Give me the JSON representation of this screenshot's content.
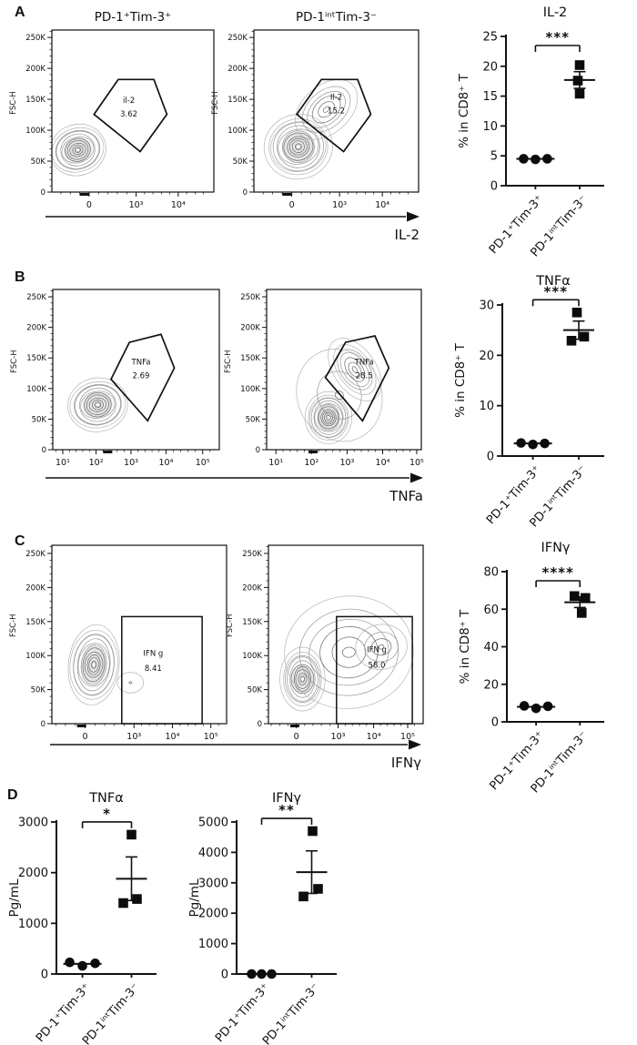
{
  "panels": {
    "a": {
      "label": "A"
    },
    "b": {
      "label": "B"
    },
    "c": {
      "label": "C"
    },
    "d": {
      "label": "D"
    }
  },
  "chart_data": {
    "flow_rows": {
      "a": {
        "type": "contour",
        "axis_label": "IL-2",
        "ylabel": "FSC-H",
        "yticks": [
          "0",
          "50K",
          "100K",
          "150K",
          "200K",
          "250K"
        ],
        "plots": [
          {
            "title": "PD-1⁺Tim-3⁺",
            "xticks": [
              [
                "0",
                0.23
              ],
              [
                "10³",
                0.52
              ],
              [
                "10⁴",
                0.78
              ]
            ],
            "zero_mark": 0.2,
            "gate": {
              "type": "poly",
              "pts": [
                [
                  0.26,
                  0.52
                ],
                [
                  0.41,
                  0.305
                ],
                [
                  0.63,
                  0.305
                ],
                [
                  0.71,
                  0.52
                ],
                [
                  0.545,
                  0.75
                ]
              ],
              "name": "il-2",
              "value": "3.62",
              "lx": 0.475,
              "ly": 0.45
            },
            "pops": [
              {
                "cx": 0.16,
                "cy": 0.74,
                "rx": 0.175,
                "ry": 0.15,
                "rot": -18,
                "n": 11,
                "dark": 1
              }
            ]
          },
          {
            "title": "PD-1ⁱⁿᵗTim-3⁻",
            "xticks": [
              [
                "0",
                0.23
              ],
              [
                "10³",
                0.52
              ],
              [
                "10⁴",
                0.78
              ]
            ],
            "zero_mark": 0.2,
            "gate": {
              "type": "poly",
              "pts": [
                [
                  0.26,
                  0.52
                ],
                [
                  0.41,
                  0.305
                ],
                [
                  0.63,
                  0.305
                ],
                [
                  0.71,
                  0.52
                ],
                [
                  0.545,
                  0.75
                ]
              ],
              "name": "Il-2",
              "value": "15.2",
              "lx": 0.5,
              "ly": 0.43
            },
            "pops": [
              {
                "cx": 0.27,
                "cy": 0.72,
                "rx": 0.2,
                "ry": 0.19,
                "rot": -15,
                "n": 12,
                "dark": 1
              },
              {
                "cx": 0.44,
                "cy": 0.49,
                "rx": 0.21,
                "ry": 0.14,
                "rot": -42,
                "n": 6
              }
            ]
          }
        ]
      },
      "b": {
        "type": "contour",
        "axis_label": "TNFa",
        "ylabel": "FSC-H",
        "yticks": [
          "0",
          "50K",
          "100K",
          "150K",
          "200K",
          "250K"
        ],
        "plots": [
          {
            "xticks": [
              [
                "10¹",
                0.06
              ],
              [
                "10²",
                0.26
              ],
              [
                "10³",
                0.47
              ],
              [
                "10⁴",
                0.68
              ],
              [
                "10⁵",
                0.9
              ]
            ],
            "zero_mark": 0.33,
            "gate": {
              "type": "poly",
              "pts": [
                [
                  0.35,
                  0.56
                ],
                [
                  0.46,
                  0.33
                ],
                [
                  0.65,
                  0.28
                ],
                [
                  0.73,
                  0.49
                ],
                [
                  0.57,
                  0.82
                ]
              ],
              "name": "TNFa",
              "value": "2.69",
              "lx": 0.53,
              "ly": 0.47
            },
            "pops": [
              {
                "cx": 0.27,
                "cy": 0.72,
                "rx": 0.18,
                "ry": 0.16,
                "rot": -10,
                "n": 11,
                "dark": 1
              }
            ]
          },
          {
            "xticks": [
              [
                "10¹",
                0.06
              ],
              [
                "10²",
                0.29
              ],
              [
                "10³",
                0.52
              ],
              [
                "10⁴",
                0.75
              ],
              [
                "10⁵",
                0.97
              ]
            ],
            "zero_mark": 0.3,
            "gate": {
              "type": "poly",
              "pts": [
                [
                  0.38,
                  0.55
                ],
                [
                  0.51,
                  0.33
                ],
                [
                  0.7,
                  0.29
                ],
                [
                  0.79,
                  0.49
                ],
                [
                  0.62,
                  0.82
                ]
              ],
              "name": "TNFa",
              "value": "28.5",
              "lx": 0.63,
              "ly": 0.47
            },
            "pops": [
              {
                "cx": 0.4,
                "cy": 0.8,
                "rx": 0.145,
                "ry": 0.155,
                "rot": 0,
                "n": 12,
                "dark": 1
              },
              {
                "cx": 0.57,
                "cy": 0.5,
                "rx": 0.13,
                "ry": 0.21,
                "rot": -35,
                "n": 7
              },
              {
                "cx": 0.47,
                "cy": 0.66,
                "rx": 0.26,
                "ry": 0.28,
                "rot": -25,
                "n": 3
              }
            ]
          }
        ]
      },
      "c": {
        "type": "contour",
        "axis_label": "IFNγ",
        "ylabel": "FSC-H",
        "yticks": [
          "0",
          "50K",
          "100K",
          "150K",
          "200K",
          "250K"
        ],
        "plots": [
          {
            "xticks": [
              [
                "0",
                0.19
              ],
              [
                "10³",
                0.47
              ],
              [
                "10⁴",
                0.69
              ],
              [
                "10⁵",
                0.91
              ]
            ],
            "zero_mark": 0.17,
            "gate": {
              "type": "rect",
              "x1": 0.4,
              "y1": 0.4,
              "x2": 0.86,
              "y2": 1.0,
              "name": "IFN g",
              "value": "8.41",
              "lx": 0.58,
              "ly": 0.62
            },
            "pops": [
              {
                "cx": 0.24,
                "cy": 0.67,
                "rx": 0.145,
                "ry": 0.215,
                "rot": 6,
                "n": 12,
                "dark": 1
              },
              {
                "cx": 0.45,
                "cy": 0.77,
                "rx": 0.075,
                "ry": 0.055,
                "rot": 0,
                "n": 2
              }
            ]
          },
          {
            "xticks": [
              [
                "0",
                0.18
              ],
              [
                "10³",
                0.45
              ],
              [
                "10⁴",
                0.68
              ],
              [
                "10⁵",
                0.9
              ]
            ],
            "zero_mark": 0.17,
            "gate": {
              "type": "rect",
              "x1": 0.44,
              "y1": 0.4,
              "x2": 0.93,
              "y2": 1.0,
              "name": "IFN g",
              "value": "58.0",
              "lx": 0.7,
              "ly": 0.6
            },
            "pops": [
              {
                "cx": 0.22,
                "cy": 0.75,
                "rx": 0.14,
                "ry": 0.17,
                "rot": 0,
                "n": 10,
                "dark": 1
              },
              {
                "cx": 0.52,
                "cy": 0.6,
                "rx": 0.4,
                "ry": 0.3,
                "rot": -6,
                "n": 6
              },
              {
                "cx": 0.73,
                "cy": 0.57,
                "rx": 0.16,
                "ry": 0.12,
                "rot": -10,
                "n": 4
              }
            ]
          }
        ]
      }
    },
    "scatters": {
      "a": {
        "type": "scatter",
        "title": "IL-2",
        "ylabel": "% in CD8⁺ T",
        "ylim": [
          0,
          25
        ],
        "yticks": [
          0,
          5,
          10,
          15,
          20,
          25
        ],
        "sig": "***",
        "groups": [
          {
            "label": "PD-1⁺Tim-3⁺",
            "marker": "circle",
            "mean": 4.5,
            "sem": 0.1,
            "points": [
              [
                -13,
                4.5
              ],
              [
                0,
                4.4
              ],
              [
                13,
                4.5
              ]
            ]
          },
          {
            "label": "PD-1ⁱⁿᵗTim-3⁻",
            "marker": "square",
            "mean": 17.7,
            "sem": 1.4,
            "points": [
              [
                0,
                20.2
              ],
              [
                -2,
                17.6
              ],
              [
                0,
                15.4
              ]
            ]
          }
        ]
      },
      "b": {
        "type": "scatter",
        "title": "TNFα",
        "ylabel": "% in CD8⁺ T",
        "ylim": [
          0,
          30
        ],
        "yticks": [
          0,
          10,
          20,
          30
        ],
        "sig": "***",
        "groups": [
          {
            "label": "PD-1⁺Tim-3⁺",
            "marker": "circle",
            "mean": 2.5,
            "sem": 0.1,
            "points": [
              [
                -13,
                2.6
              ],
              [
                0,
                2.3
              ],
              [
                13,
                2.5
              ]
            ]
          },
          {
            "label": "PD-1ⁱⁿᵗTim-3⁻",
            "marker": "square",
            "mean": 25.0,
            "sem": 1.8,
            "points": [
              [
                -2,
                28.5
              ],
              [
                -8,
                22.9
              ],
              [
                6,
                23.7
              ]
            ]
          }
        ]
      },
      "c": {
        "type": "scatter",
        "title": "IFNγ",
        "ylabel": "% in CD8⁺ T",
        "ylim": [
          0,
          80
        ],
        "yticks": [
          0,
          20,
          40,
          60,
          80
        ],
        "sig": "****",
        "groups": [
          {
            "label": "PD-1⁺Tim-3⁺",
            "marker": "circle",
            "mean": 8.0,
            "sem": 0.5,
            "points": [
              [
                -13,
                8.5
              ],
              [
                0,
                7.2
              ],
              [
                13,
                8.3
              ]
            ]
          },
          {
            "label": "PD-1ⁱⁿᵗTim-3⁻",
            "marker": "square",
            "mean": 63.7,
            "sem": 2.8,
            "points": [
              [
                -6,
                67
              ],
              [
                6,
                66
              ],
              [
                2,
                58
              ]
            ]
          }
        ]
      },
      "d1": {
        "type": "scatter",
        "title": "TNFα",
        "ylabel": "Pg/mL",
        "ylim": [
          0,
          3000
        ],
        "yticks": [
          0,
          1000,
          2000,
          3000
        ],
        "sig": "*",
        "groups": [
          {
            "label": "PD-1⁺Tim-3⁺",
            "marker": "circle",
            "mean": 200,
            "sem": 25,
            "points": [
              [
                -14,
                230
              ],
              [
                0,
                160
              ],
              [
                14,
                210
              ]
            ]
          },
          {
            "label": "PD-1ⁱⁿᵗTim-3⁻",
            "marker": "square",
            "mean": 1880,
            "sem": 430,
            "points": [
              [
                0,
                2750
              ],
              [
                -9,
                1400
              ],
              [
                6,
                1480
              ]
            ]
          }
        ]
      },
      "d2": {
        "type": "scatter",
        "title": "IFNγ",
        "ylabel": "Pg/mL",
        "ylim": [
          0,
          5000
        ],
        "yticks": [
          0,
          1000,
          2000,
          3000,
          4000,
          5000
        ],
        "sig": "**",
        "groups": [
          {
            "label": "PD-1⁺Tim-3⁺",
            "marker": "circle",
            "mean": 0,
            "sem": 0,
            "points": [
              [
                -11,
                0
              ],
              [
                0,
                0
              ],
              [
                11,
                0
              ]
            ]
          },
          {
            "label": "PD-1ⁱⁿᵗTim-3⁻",
            "marker": "square",
            "mean": 3350,
            "sem": 700,
            "points": [
              [
                1,
                4700
              ],
              [
                -9,
                2550
              ],
              [
                7,
                2800
              ]
            ]
          }
        ]
      }
    }
  }
}
